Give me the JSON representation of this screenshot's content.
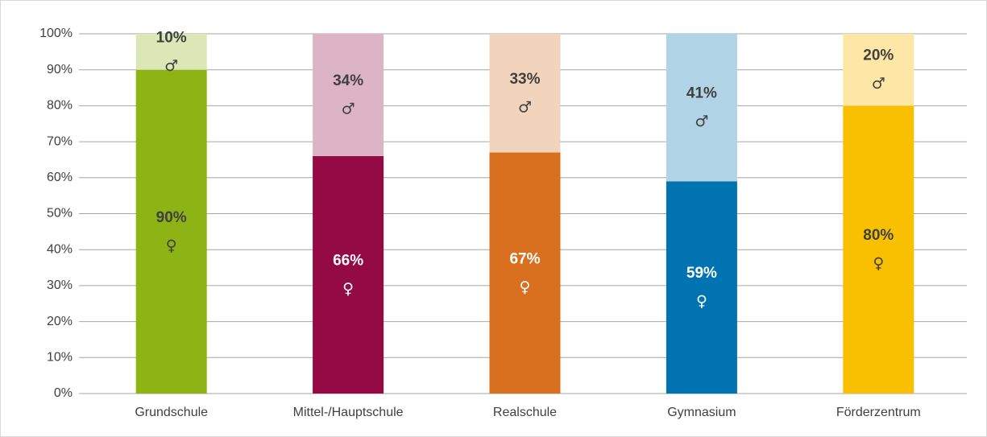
{
  "chart_data": {
    "type": "stacked_bar",
    "categories": [
      "Grundschule",
      "Mittel-/Hauptschule",
      "Realschule",
      "Gymnasium",
      "Förderzentrum"
    ],
    "series": [
      {
        "name": "♀",
        "colors": [
          "#8db314",
          "#940a44",
          "#d87020",
          "#0073b0",
          "#f8c000"
        ],
        "label_colors": [
          "#404040",
          "#ffffff",
          "#ffffff",
          "#ffffff",
          "#404040"
        ],
        "values": [
          90,
          66,
          67,
          59,
          80
        ],
        "value_labels": [
          "90%",
          "66%",
          "67%",
          "59%",
          "80%"
        ]
      },
      {
        "name": "♂",
        "colors": [
          "#dbe7b6",
          "#ddb4c6",
          "#f2d3bc",
          "#b0d4e6",
          "#fde7a6"
        ],
        "label_colors": [
          "#404040",
          "#404040",
          "#404040",
          "#404040",
          "#404040"
        ],
        "values": [
          10,
          34,
          33,
          41,
          20
        ],
        "value_labels": [
          "10%",
          "34%",
          "33%",
          "41%",
          "20%"
        ]
      }
    ],
    "ylim": [
      0,
      100
    ],
    "yticks": [
      {
        "value": 0,
        "label": "0%"
      },
      {
        "value": 10,
        "label": "10%"
      },
      {
        "value": 20,
        "label": "20%"
      },
      {
        "value": 30,
        "label": "30%"
      },
      {
        "value": 40,
        "label": "40%"
      },
      {
        "value": 50,
        "label": "50%"
      },
      {
        "value": 60,
        "label": "60%"
      },
      {
        "value": 70,
        "label": "70%"
      },
      {
        "value": 80,
        "label": "80%"
      },
      {
        "value": 90,
        "label": "90%"
      },
      {
        "value": 100,
        "label": "100%"
      }
    ],
    "grid": true
  }
}
